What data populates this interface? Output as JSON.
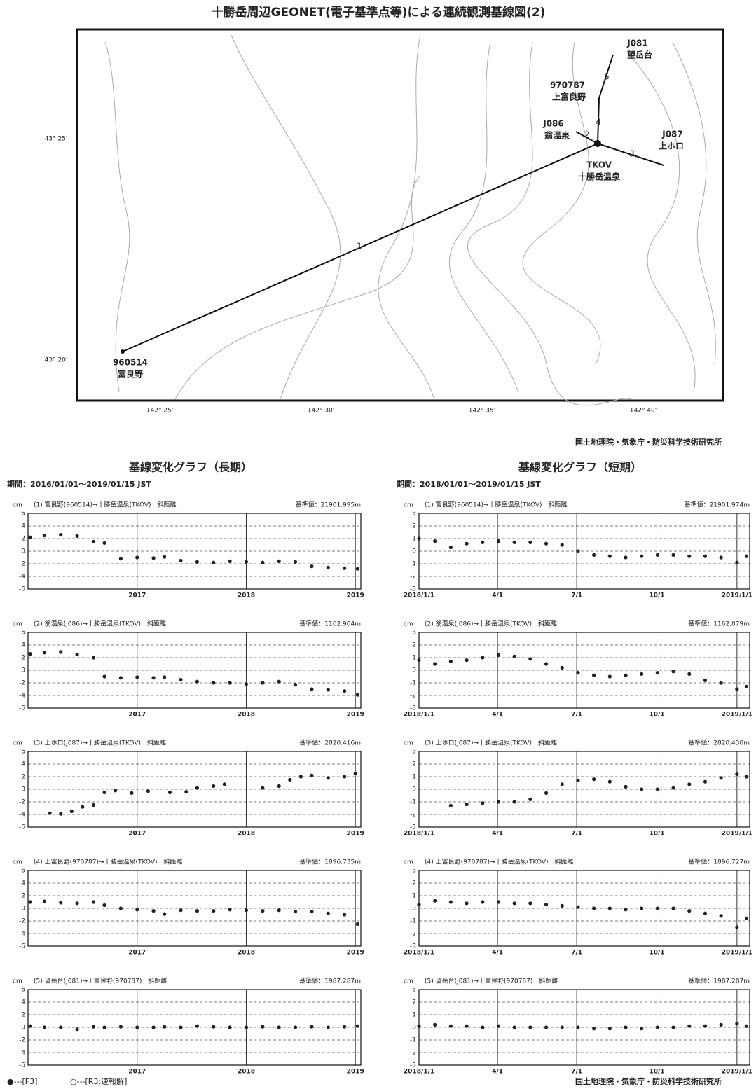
{
  "header": {
    "title": "十勝岳周辺GEONET(電子基準点等)による連続観測基線図(2)",
    "credit": "国土地理院・気象庁・防災科学技術研究所"
  },
  "map": {
    "stations": [
      {
        "code": "J081",
        "name": "望岳台"
      },
      {
        "code": "970787",
        "name": "上富良野"
      },
      {
        "code": "J086",
        "name": "翁温泉"
      },
      {
        "code": "J087",
        "name": "上ホロ"
      },
      {
        "code": "TKOV",
        "name": "十勝岳温泉"
      },
      {
        "code": "960514",
        "name": "富良野"
      }
    ],
    "baselines": [
      "1",
      "2",
      "3",
      "4",
      "5"
    ],
    "lat_labels": [
      "43° 25'",
      "43° 20'"
    ],
    "lon_labels": [
      "142° 25'",
      "142° 30'",
      "142° 35'",
      "142° 40'"
    ]
  },
  "sections": [
    {
      "title": "基線変化グラフ（長期）",
      "period": "期間：2016/01/01～2019/01/15 JST"
    },
    {
      "title": "基線変化グラフ（短期）",
      "period": "期間：2018/01/01～2019/01/15 JST"
    }
  ],
  "legend": [
    "●---[F3]",
    "○---[R3:速報解]"
  ],
  "footer": {
    "credit": "国土地理院・気象庁・防災科学技術研究所"
  },
  "chart_data": [
    {
      "type": "scatter",
      "title": "(1) 富良野(960514)→十勝岳温泉(TKOV)　斜距離",
      "reference": "基準値：21901.995m",
      "y_unit": "cm",
      "color": "#222222",
      "xlim": [
        2016,
        2019.05
      ],
      "xticks": [
        2017,
        2018,
        2019
      ],
      "ylim": [
        -6,
        6
      ],
      "yticks": [
        -6,
        -4,
        -2,
        0,
        2,
        4,
        6
      ],
      "x": [
        2016.02,
        2016.15,
        2016.3,
        2016.45,
        2016.6,
        2016.7,
        2016.85,
        2017.0,
        2017.15,
        2017.25,
        2017.4,
        2017.55,
        2017.7,
        2017.85,
        2018.0,
        2018.15,
        2018.3,
        2018.45,
        2018.6,
        2018.75,
        2018.9,
        2019.02
      ],
      "values": [
        2.2,
        2.5,
        2.6,
        2.4,
        1.5,
        1.3,
        -1.2,
        -1.0,
        -1.1,
        -0.9,
        -1.5,
        -1.7,
        -1.8,
        -1.6,
        -1.7,
        -1.8,
        -1.6,
        -1.7,
        -2.4,
        -2.6,
        -2.7,
        -2.8
      ]
    },
    {
      "type": "scatter",
      "title": "(2) 翁温泉(J086)→十勝岳温泉(TKOV)　斜距離",
      "reference": "基準値：1162.904m",
      "y_unit": "cm",
      "color": "#222222",
      "xlim": [
        2016,
        2019.05
      ],
      "xticks": [
        2017,
        2018,
        2019
      ],
      "ylim": [
        -6,
        6
      ],
      "yticks": [
        -6,
        -4,
        -2,
        0,
        2,
        4,
        6
      ],
      "x": [
        2016.02,
        2016.15,
        2016.3,
        2016.45,
        2016.6,
        2016.7,
        2016.85,
        2017.0,
        2017.15,
        2017.25,
        2017.4,
        2017.55,
        2017.7,
        2017.85,
        2018.0,
        2018.15,
        2018.3,
        2018.45,
        2018.6,
        2018.75,
        2018.9,
        2019.02
      ],
      "values": [
        2.6,
        2.8,
        2.9,
        2.5,
        2.0,
        -1.0,
        -1.2,
        -1.1,
        -1.2,
        -1.1,
        -1.5,
        -1.8,
        -2.0,
        -2.0,
        -2.2,
        -2.0,
        -1.8,
        -2.3,
        -3.0,
        -3.1,
        -3.3,
        -3.9
      ]
    },
    {
      "type": "scatter",
      "title": "(3) 上ホロ(J087)→十勝岳温泉(TKOV)　斜距離",
      "reference": "基準値：2820.416m",
      "y_unit": "cm",
      "color": "#222222",
      "xlim": [
        2016,
        2019.05
      ],
      "xticks": [
        2017,
        2018,
        2019
      ],
      "ylim": [
        -6,
        6
      ],
      "yticks": [
        -6,
        -4,
        -2,
        0,
        2,
        4,
        6
      ],
      "x": [
        2016.2,
        2016.3,
        2016.4,
        2016.5,
        2016.6,
        2016.7,
        2016.8,
        2016.95,
        2017.1,
        2017.3,
        2017.45,
        2017.55,
        2017.7,
        2017.8,
        2018.15,
        2018.3,
        2018.4,
        2018.5,
        2018.6,
        2018.75,
        2018.9,
        2019.0
      ],
      "values": [
        -3.8,
        -3.9,
        -3.5,
        -2.8,
        -2.5,
        -0.5,
        -0.2,
        -0.6,
        -0.3,
        -0.5,
        -0.4,
        0.2,
        0.5,
        0.8,
        0.2,
        0.5,
        1.5,
        2.0,
        2.2,
        1.8,
        2.0,
        2.5
      ]
    },
    {
      "type": "scatter",
      "title": "(4) 上富良野(970787)→十勝岳温泉(TKOV)　斜距離",
      "reference": "基準値：1896.735m",
      "y_unit": "cm",
      "color": "#222222",
      "xlim": [
        2016,
        2019.05
      ],
      "xticks": [
        2017,
        2018,
        2019
      ],
      "ylim": [
        -6,
        6
      ],
      "yticks": [
        -6,
        -4,
        -2,
        0,
        2,
        4,
        6
      ],
      "x": [
        2016.02,
        2016.15,
        2016.3,
        2016.45,
        2016.6,
        2016.7,
        2016.85,
        2017.0,
        2017.15,
        2017.25,
        2017.4,
        2017.55,
        2017.7,
        2017.85,
        2018.0,
        2018.15,
        2018.3,
        2018.45,
        2018.6,
        2018.75,
        2018.9,
        2019.02
      ],
      "values": [
        1.0,
        1.1,
        0.9,
        0.8,
        1.0,
        0.5,
        0.0,
        -0.2,
        -0.4,
        -0.9,
        -0.3,
        -0.4,
        -0.4,
        -0.2,
        -0.3,
        -0.4,
        -0.3,
        -0.5,
        -0.5,
        -0.8,
        -1.0,
        -2.5
      ]
    },
    {
      "type": "scatter",
      "title": "(5) 望岳台(J081)→上富良野(970787)　斜距離",
      "reference": "基準値：1987.287m",
      "y_unit": "cm",
      "color": "#222222",
      "xlim": [
        2016,
        2019.05
      ],
      "xticks": [
        2017,
        2018,
        2019
      ],
      "ylim": [
        -6,
        6
      ],
      "yticks": [
        -6,
        -4,
        -2,
        0,
        2,
        4,
        6
      ],
      "x": [
        2016.02,
        2016.15,
        2016.3,
        2016.45,
        2016.6,
        2016.7,
        2016.85,
        2017.0,
        2017.15,
        2017.25,
        2017.4,
        2017.55,
        2017.7,
        2017.85,
        2018.0,
        2018.15,
        2018.3,
        2018.45,
        2018.6,
        2018.75,
        2018.9,
        2019.02
      ],
      "values": [
        0.2,
        0.0,
        0.0,
        -0.3,
        0.1,
        0.0,
        0.1,
        0.0,
        0.0,
        0.1,
        0.0,
        0.2,
        0.1,
        0.0,
        0.0,
        0.1,
        0.0,
        0.0,
        0.1,
        0.0,
        0.1,
        0.2
      ]
    },
    {
      "type": "scatter",
      "title": "(1) 富良野(960514)→十勝岳温泉(TKOV)　斜距離",
      "reference": "基準値：21901.974m",
      "y_unit": "cm",
      "color": "#222222",
      "xlim": [
        2018,
        2019.04
      ],
      "xticks": [
        {
          "value": 2018,
          "label": "2018/1/1"
        },
        {
          "value": 2018.247,
          "label": "4/1"
        },
        {
          "value": 2018.496,
          "label": "7/1"
        },
        {
          "value": 2018.748,
          "label": "10/1"
        },
        {
          "value": 2019,
          "label": "2019/1/1"
        }
      ],
      "ylim": [
        -3,
        3
      ],
      "yticks": [
        -3,
        -2,
        -1,
        0,
        1,
        2,
        3
      ],
      "x": [
        2018.0,
        2018.05,
        2018.1,
        2018.15,
        2018.2,
        2018.25,
        2018.3,
        2018.35,
        2018.4,
        2018.45,
        2018.5,
        2018.55,
        2018.6,
        2018.65,
        2018.7,
        2018.75,
        2018.8,
        2018.85,
        2018.9,
        2018.95,
        2019.0,
        2019.03
      ],
      "values": [
        1.0,
        0.8,
        0.3,
        0.6,
        0.7,
        0.8,
        0.7,
        0.7,
        0.6,
        0.5,
        0.0,
        -0.3,
        -0.4,
        -0.5,
        -0.4,
        -0.3,
        -0.3,
        -0.4,
        -0.4,
        -0.5,
        -0.9,
        -0.4
      ]
    },
    {
      "type": "scatter",
      "title": "(2) 翁温泉(J086)→十勝岳温泉(TKOV)　斜距離",
      "reference": "基準値：1162.879m",
      "y_unit": "cm",
      "color": "#222222",
      "xlim": [
        2018,
        2019.04
      ],
      "xticks": [
        {
          "value": 2018,
          "label": "2018/1/1"
        },
        {
          "value": 2018.247,
          "label": "4/1"
        },
        {
          "value": 2018.496,
          "label": "7/1"
        },
        {
          "value": 2018.748,
          "label": "10/1"
        },
        {
          "value": 2019,
          "label": "2019/1/1"
        }
      ],
      "ylim": [
        -3,
        3
      ],
      "yticks": [
        -3,
        -2,
        -1,
        0,
        1,
        2,
        3
      ],
      "x": [
        2018.0,
        2018.05,
        2018.1,
        2018.15,
        2018.2,
        2018.25,
        2018.3,
        2018.35,
        2018.4,
        2018.45,
        2018.5,
        2018.55,
        2018.6,
        2018.65,
        2018.7,
        2018.75,
        2018.8,
        2018.85,
        2018.9,
        2018.95,
        2019.0,
        2019.03
      ],
      "values": [
        0.8,
        0.5,
        0.7,
        0.8,
        1.0,
        1.2,
        1.1,
        0.9,
        0.5,
        0.2,
        -0.2,
        -0.4,
        -0.5,
        -0.4,
        -0.3,
        -0.2,
        -0.1,
        -0.3,
        -0.8,
        -1.0,
        -1.5,
        -1.3
      ]
    },
    {
      "type": "scatter",
      "title": "(3) 上ホロ(J087)→十勝岳温泉(TKOV)　斜距離",
      "reference": "基準値：2820.430m",
      "y_unit": "cm",
      "color": "#222222",
      "xlim": [
        2018,
        2019.04
      ],
      "xticks": [
        {
          "value": 2018,
          "label": "2018/1/1"
        },
        {
          "value": 2018.247,
          "label": "4/1"
        },
        {
          "value": 2018.496,
          "label": "7/1"
        },
        {
          "value": 2018.748,
          "label": "10/1"
        },
        {
          "value": 2019,
          "label": "2019/1/1"
        }
      ],
      "ylim": [
        -3,
        3
      ],
      "yticks": [
        -3,
        -2,
        -1,
        0,
        1,
        2,
        3
      ],
      "x": [
        2018.0,
        2018.05,
        2018.1,
        2018.15,
        2018.2,
        2018.25,
        2018.3,
        2018.35,
        2018.4,
        2018.45,
        2018.5,
        2018.55,
        2018.6,
        2018.65,
        2018.7,
        2018.75,
        2018.8,
        2018.85,
        2018.9,
        2018.95,
        2019.0,
        2019.03
      ],
      "values": [
        null,
        null,
        -1.3,
        -1.2,
        -1.1,
        -1.0,
        -1.0,
        -0.8,
        -0.3,
        0.4,
        0.7,
        0.8,
        0.6,
        0.2,
        0.0,
        0.0,
        0.1,
        0.4,
        0.6,
        0.9,
        1.2,
        1.0
      ]
    },
    {
      "type": "scatter",
      "title": "(4) 上富良野(970787)→十勝岳温泉(TKOV)　斜距離",
      "reference": "基準値：1896.727m",
      "y_unit": "cm",
      "color": "#222222",
      "xlim": [
        2018,
        2019.04
      ],
      "xticks": [
        {
          "value": 2018,
          "label": "2018/1/1"
        },
        {
          "value": 2018.247,
          "label": "4/1"
        },
        {
          "value": 2018.496,
          "label": "7/1"
        },
        {
          "value": 2018.748,
          "label": "10/1"
        },
        {
          "value": 2019,
          "label": "2019/1/1"
        }
      ],
      "ylim": [
        -3,
        3
      ],
      "yticks": [
        -3,
        -2,
        -1,
        0,
        1,
        2,
        3
      ],
      "x": [
        2018.0,
        2018.05,
        2018.1,
        2018.15,
        2018.2,
        2018.25,
        2018.3,
        2018.35,
        2018.4,
        2018.45,
        2018.5,
        2018.55,
        2018.6,
        2018.65,
        2018.7,
        2018.75,
        2018.8,
        2018.85,
        2018.9,
        2018.95,
        2019.0,
        2019.03
      ],
      "values": [
        0.3,
        0.6,
        0.5,
        0.4,
        0.5,
        0.5,
        0.4,
        0.4,
        0.3,
        0.2,
        0.1,
        0.0,
        0.0,
        -0.1,
        0.0,
        0.0,
        0.0,
        -0.2,
        -0.4,
        -0.6,
        -1.5,
        -0.8
      ]
    },
    {
      "type": "scatter",
      "title": "(5) 望岳台(J081)→上富良野(970787)　斜距離",
      "reference": "基準値：1987.287m",
      "y_unit": "cm",
      "color": "#222222",
      "xlim": [
        2018,
        2019.04
      ],
      "xticks": [
        {
          "value": 2018,
          "label": "2018/1/1"
        },
        {
          "value": 2018.247,
          "label": "4/1"
        },
        {
          "value": 2018.496,
          "label": "7/1"
        },
        {
          "value": 2018.748,
          "label": "10/1"
        },
        {
          "value": 2019,
          "label": "2019/1/1"
        }
      ],
      "ylim": [
        -3,
        3
      ],
      "yticks": [
        -3,
        -2,
        -1,
        0,
        1,
        2,
        3
      ],
      "x": [
        2018.0,
        2018.05,
        2018.1,
        2018.15,
        2018.2,
        2018.25,
        2018.3,
        2018.35,
        2018.4,
        2018.45,
        2018.5,
        2018.55,
        2018.6,
        2018.65,
        2018.7,
        2018.75,
        2018.8,
        2018.85,
        2018.9,
        2018.95,
        2019.0,
        2019.03
      ],
      "values": [
        0.1,
        0.2,
        0.1,
        0.1,
        0.0,
        0.1,
        0.0,
        0.0,
        0.0,
        0.0,
        0.0,
        -0.1,
        -0.1,
        0.0,
        -0.1,
        0.0,
        0.0,
        0.1,
        0.1,
        0.2,
        0.3,
        0.1
      ]
    }
  ]
}
